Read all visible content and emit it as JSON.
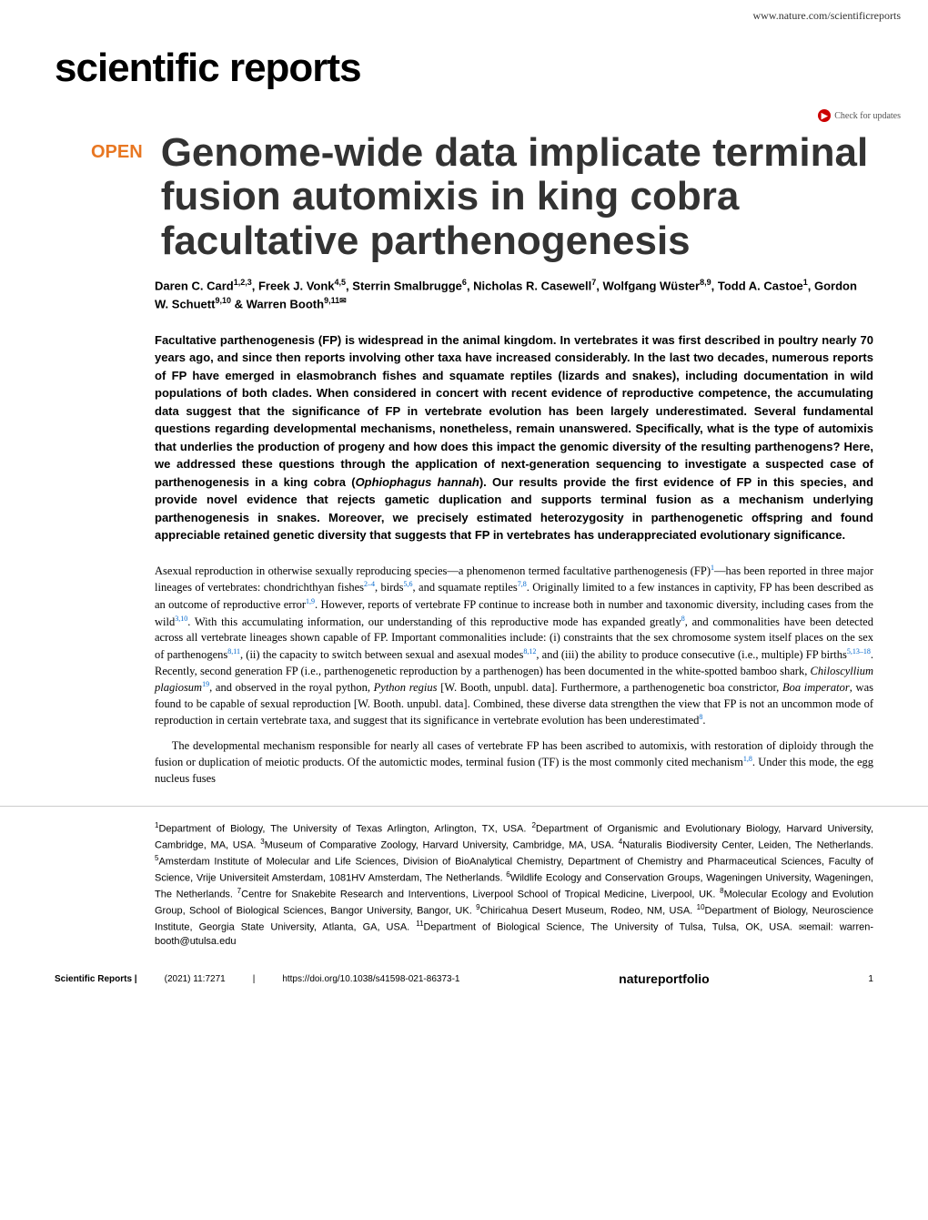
{
  "header": {
    "site_url": "www.nature.com/scientificreports",
    "journal_name": "scientific reports",
    "check_updates": "Check for updates"
  },
  "article": {
    "open_badge": "OPEN",
    "title": "Genome-wide data implicate terminal fusion automixis in king cobra facultative parthenogenesis"
  },
  "authors": {
    "list": "Daren C. Card",
    "aff_1": "1,2,3",
    "sep_1": ", Freek J. Vonk",
    "aff_2": "4,5",
    "sep_2": ", Sterrin Smalbrugge",
    "aff_3": "6",
    "sep_3": ", Nicholas R. Casewell",
    "aff_4": "7",
    "sep_4": ", Wolfgang Wüster",
    "aff_5": "8,9",
    "sep_5": ", Todd A. Castoe",
    "aff_6": "1",
    "sep_6": ", Gordon W. Schuett",
    "aff_7": "9,10",
    "sep_7": " & Warren Booth",
    "aff_8": "9,11✉"
  },
  "abstract": {
    "text_1": "Facultative parthenogenesis (FP) is widespread in the animal kingdom. In vertebrates it was first described in poultry nearly 70 years ago, and since then reports involving other taxa have increased considerably. In the last two decades, numerous reports of FP have emerged in elasmobranch fishes and squamate reptiles (lizards and snakes), including documentation in wild populations of both clades. When considered in concert with recent evidence of reproductive competence, the accumulating data suggest that the significance of FP in vertebrate evolution has been largely underestimated. Several fundamental questions regarding developmental mechanisms, nonetheless, remain unanswered. Specifically, what is the type of automixis that underlies the production of progeny and how does this impact the genomic diversity of the resulting parthenogens? Here, we addressed these questions through the application of next-generation sequencing to investigate a suspected case of parthenogenesis in a king cobra (",
    "species": "Ophiophagus hannah",
    "text_2": "). Our results provide the first evidence of FP in this species, and provide novel evidence that rejects gametic duplication and supports terminal fusion as a mechanism underlying parthenogenesis in snakes. Moreover, we precisely estimated heterozygosity in parthenogenetic offspring and found appreciable retained genetic diversity that suggests that FP in vertebrates has underappreciated evolutionary significance."
  },
  "body": {
    "p1_1": "Asexual reproduction in otherwise sexually reproducing species—a phenomenon termed facultative parthenogenesis (FP)",
    "p1_ref1": "1",
    "p1_2": "—has been reported in three major lineages of vertebrates: chondrichthyan fishes",
    "p1_ref2": "2–4",
    "p1_3": ", birds",
    "p1_ref3": "5,6",
    "p1_4": ", and squamate reptiles",
    "p1_ref4": "7,8",
    "p1_5": ". Originally limited to a few instances in captivity, FP has been described as an outcome of reproductive error",
    "p1_ref5": "1,9",
    "p1_6": ". However, reports of vertebrate FP continue to increase both in number and taxonomic diversity, including cases from the wild",
    "p1_ref6": "3,10",
    "p1_7": ". With this accumulating information, our understanding of this reproductive mode has expanded greatly",
    "p1_ref7": "8",
    "p1_8": ", and commonalities have been detected across all vertebrate lineages shown capable of FP. Important commonalities include: (i) constraints that the sex chromosome system itself places on the sex of parthenogens",
    "p1_ref8": "8,11",
    "p1_9": ", (ii) the capacity to switch between sexual and asexual modes",
    "p1_ref9": "8,12",
    "p1_10": ", and (iii) the ability to produce consecutive (i.e., multiple) FP births",
    "p1_ref10": "5,13–18",
    "p1_11": ". Recently, second generation FP (i.e., parthenogenetic reproduction by a parthenogen) has been documented in the white-spotted bamboo shark, ",
    "p1_species1": "Chiloscyllium plagiosum",
    "p1_ref11": "19",
    "p1_12": ", and observed in the royal python, ",
    "p1_species2": "Python regius",
    "p1_13": " [W. Booth, unpubl. data]. Furthermore, a parthenogenetic boa constrictor, ",
    "p1_species3": "Boa imperator",
    "p1_14": ", was found to be capable of sexual reproduction [W. Booth. unpubl. data]. Combined, these diverse data strengthen the view that FP is not an uncommon mode of reproduction in certain vertebrate taxa, and suggest that its significance in vertebrate evolution has been underestimated",
    "p1_ref12": "8",
    "p1_15": ".",
    "p2_1": "The developmental mechanism responsible for nearly all cases of vertebrate FP has been ascribed to automixis, with restoration of diploidy through the fusion or duplication of meiotic products. Of the automictic modes, terminal fusion (TF) is the most commonly cited mechanism",
    "p2_ref1": "1,8",
    "p2_2": ". Under this mode, the egg nucleus fuses"
  },
  "affiliations": {
    "a1_sup": "1",
    "a1": "Department of Biology, The University of Texas Arlington, Arlington, TX, USA. ",
    "a2_sup": "2",
    "a2": "Department of Organismic and Evolutionary Biology, Harvard University, Cambridge, MA, USA. ",
    "a3_sup": "3",
    "a3": "Museum of Comparative Zoology, Harvard University, Cambridge, MA, USA. ",
    "a4_sup": "4",
    "a4": "Naturalis Biodiversity Center, Leiden, The Netherlands. ",
    "a5_sup": "5",
    "a5": "Amsterdam Institute of Molecular and Life Sciences, Division of BioAnalytical Chemistry, Department of Chemistry and Pharmaceutical Sciences, Faculty of Science, Vrije Universiteit Amsterdam, 1081HV Amsterdam, The Netherlands. ",
    "a6_sup": "6",
    "a6": "Wildlife Ecology and Conservation Groups, Wageningen University, Wageningen, The Netherlands. ",
    "a7_sup": "7",
    "a7": "Centre for Snakebite Research and Interventions, Liverpool School of Tropical Medicine, Liverpool, UK. ",
    "a8_sup": "8",
    "a8": "Molecular Ecology and Evolution Group, School of Biological Sciences, Bangor University, Bangor, UK. ",
    "a9_sup": "9",
    "a9": "Chiricahua Desert Museum, Rodeo, NM, USA. ",
    "a10_sup": "10",
    "a10": "Department of Biology, Neuroscience Institute, Georgia State University, Atlanta, GA, USA. ",
    "a11_sup": "11",
    "a11": "Department of Biological Science, The University of Tulsa, Tulsa, OK, USA. ",
    "email_label": "✉",
    "email_text": "email: warren-booth@utulsa.edu"
  },
  "footer": {
    "journal_ref": "Scientific Reports |",
    "citation": "(2021) 11:7271",
    "doi_sep": "|",
    "doi": "https://doi.org/10.1038/s41598-021-86373-1",
    "publisher": "natureportfolio",
    "page": "1"
  }
}
